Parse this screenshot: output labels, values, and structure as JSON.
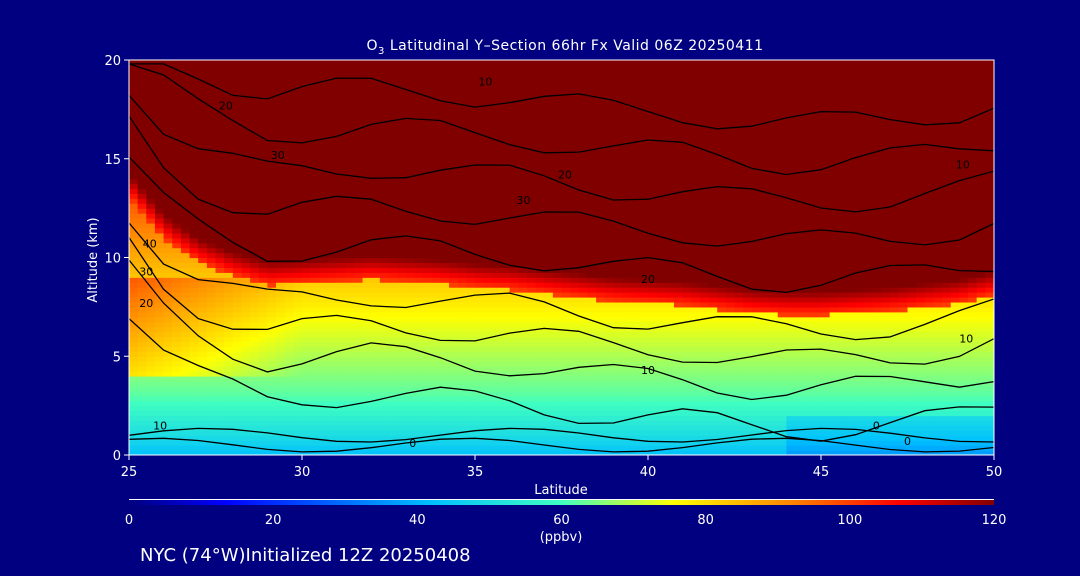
{
  "chart_data": {
    "type": "heatmap",
    "title_prefix": "O",
    "title_sub": "3",
    "title_rest": " Latitudinal Y–Section 66hr  Fx Valid 06Z 20250411",
    "xlabel": "Latitude",
    "ylabel": "Altitude (km)",
    "xlim": [
      25,
      50
    ],
    "ylim": [
      0,
      20
    ],
    "x_ticks": [
      "25",
      "30",
      "35",
      "40",
      "45",
      "50"
    ],
    "y_ticks": [
      "0",
      "5",
      "10",
      "15",
      "20"
    ],
    "colorbar": {
      "range": [
        0,
        120
      ],
      "ticks": [
        "0",
        "20",
        "40",
        "60",
        "80",
        "100",
        "120"
      ],
      "unit_label": "(ppbv)"
    },
    "latitudes": [
      25,
      26,
      27,
      28,
      29,
      30,
      31,
      32,
      33,
      34,
      35,
      36,
      37,
      38,
      39,
      40,
      41,
      42,
      43,
      44,
      45,
      46,
      47,
      48,
      49,
      50
    ],
    "altitudes": [
      0,
      1,
      2,
      3,
      4,
      5,
      6,
      7,
      8,
      9,
      10,
      11,
      12,
      13,
      14,
      15,
      16,
      17,
      18,
      19,
      20
    ],
    "tropopause_km": [
      14.3,
      12.2,
      11.0,
      10.3,
      9.8,
      9.9,
      10.0,
      10.1,
      10.0,
      9.9,
      9.7,
      9.6,
      9.4,
      9.2,
      9.0,
      8.9,
      8.8,
      8.6,
      8.4,
      8.3,
      8.3,
      8.4,
      8.5,
      8.7,
      8.9,
      9.3
    ],
    "contour_labels": [
      {
        "text": "10",
        "x": 35.3,
        "y": 18.7
      },
      {
        "text": "20",
        "x": 27.8,
        "y": 17.5
      },
      {
        "text": "30",
        "x": 29.3,
        "y": 15.0
      },
      {
        "text": "20",
        "x": 37.6,
        "y": 14.0
      },
      {
        "text": "30",
        "x": 36.4,
        "y": 12.7
      },
      {
        "text": "40",
        "x": 25.6,
        "y": 10.5
      },
      {
        "text": "30",
        "x": 25.5,
        "y": 9.1
      },
      {
        "text": "20",
        "x": 25.5,
        "y": 7.5
      },
      {
        "text": "20",
        "x": 40.0,
        "y": 8.7
      },
      {
        "text": "10",
        "x": 40.0,
        "y": 4.1
      },
      {
        "text": "10",
        "x": 49.2,
        "y": 5.7
      },
      {
        "text": "10",
        "x": 49.1,
        "y": 14.5
      },
      {
        "text": "10",
        "x": 25.9,
        "y": 1.3
      },
      {
        "text": "0",
        "x": 33.2,
        "y": 0.4
      },
      {
        "text": "0",
        "x": 46.6,
        "y": 1.3
      },
      {
        "text": "0",
        "x": 47.5,
        "y": 0.5
      }
    ]
  },
  "footer": {
    "text": "NYC (74°W)Initialized 12Z 20250408"
  }
}
